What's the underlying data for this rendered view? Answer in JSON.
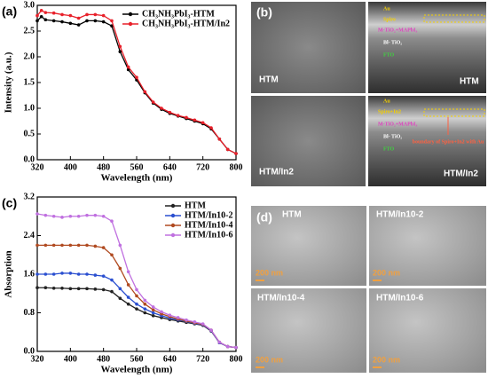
{
  "chart_data": [
    {
      "type": "line",
      "label": "(a)",
      "xlabel": "Wavelength (nm)",
      "ylabel": "Intensity (a.u.)",
      "x": [
        320,
        330,
        340,
        360,
        380,
        400,
        420,
        440,
        460,
        480,
        500,
        520,
        540,
        560,
        580,
        600,
        620,
        640,
        660,
        680,
        700,
        720,
        740,
        760,
        780,
        800
      ],
      "series": [
        {
          "name": "CH₃NH₃PbI₃-HTM",
          "color": "#000000",
          "values": [
            2.7,
            2.78,
            2.72,
            2.7,
            2.68,
            2.65,
            2.62,
            2.7,
            2.7,
            2.68,
            2.6,
            2.1,
            1.75,
            1.55,
            1.3,
            1.1,
            0.98,
            0.9,
            0.85,
            0.8,
            0.75,
            0.7,
            0.6,
            0.4,
            0.2,
            0.12
          ]
        },
        {
          "name": "CH₃NH₃PbI₃-HTM/In2",
          "color": "#e8202a",
          "values": [
            2.8,
            2.9,
            2.86,
            2.85,
            2.82,
            2.8,
            2.75,
            2.82,
            2.82,
            2.8,
            2.7,
            2.2,
            1.8,
            1.6,
            1.32,
            1.12,
            1.0,
            0.92,
            0.86,
            0.82,
            0.77,
            0.72,
            0.62,
            0.4,
            0.2,
            0.12
          ]
        }
      ],
      "xlim": [
        320,
        800
      ],
      "xticks": [
        320,
        400,
        480,
        560,
        640,
        720,
        800
      ],
      "ylim": [
        0,
        3
      ],
      "yticks": [
        {
          "value": 0,
          "label": "0.0"
        },
        0.5,
        {
          "value": 1,
          "label": "1.0"
        },
        1.5,
        {
          "value": 2,
          "label": "2.0"
        },
        2.5,
        {
          "value": 3,
          "label": "3.0"
        }
      ],
      "legend": "upper right"
    },
    {
      "type": "line",
      "label": "(c)",
      "xlabel": "Wavelength (nm)",
      "ylabel": "Absorption",
      "x": [
        320,
        340,
        360,
        380,
        400,
        420,
        440,
        460,
        480,
        500,
        520,
        540,
        560,
        580,
        600,
        620,
        640,
        660,
        680,
        700,
        720,
        740,
        760,
        780,
        800
      ],
      "series": [
        {
          "name": "HTM",
          "color": "#222222",
          "values": [
            1.32,
            1.32,
            1.31,
            1.31,
            1.3,
            1.3,
            1.3,
            1.29,
            1.28,
            1.24,
            1.1,
            0.98,
            0.88,
            0.8,
            0.74,
            0.7,
            0.66,
            0.63,
            0.6,
            0.57,
            0.54,
            0.42,
            0.18,
            0.1,
            0.08
          ]
        },
        {
          "name": "HTM/In10-2",
          "color": "#2a4fd0",
          "values": [
            1.6,
            1.6,
            1.6,
            1.62,
            1.62,
            1.6,
            1.6,
            1.58,
            1.56,
            1.48,
            1.3,
            1.12,
            0.98,
            0.88,
            0.8,
            0.74,
            0.69,
            0.65,
            0.62,
            0.58,
            0.55,
            0.43,
            0.18,
            0.1,
            0.08
          ]
        },
        {
          "name": "HTM/In10-4",
          "color": "#b04a20",
          "values": [
            2.2,
            2.2,
            2.2,
            2.2,
            2.2,
            2.2,
            2.2,
            2.18,
            2.15,
            2.0,
            1.72,
            1.38,
            1.15,
            0.98,
            0.86,
            0.78,
            0.72,
            0.67,
            0.63,
            0.59,
            0.56,
            0.44,
            0.19,
            0.1,
            0.08
          ]
        },
        {
          "name": "HTM/In10-6",
          "color": "#c070e0",
          "values": [
            2.85,
            2.82,
            2.8,
            2.78,
            2.8,
            2.8,
            2.82,
            2.82,
            2.8,
            2.7,
            2.2,
            1.65,
            1.28,
            1.06,
            0.92,
            0.82,
            0.75,
            0.7,
            0.65,
            0.61,
            0.57,
            0.44,
            0.19,
            0.1,
            0.08
          ]
        }
      ],
      "xlim": [
        320,
        800
      ],
      "xticks": [
        320,
        400,
        480,
        560,
        640,
        720,
        800
      ],
      "ylim": [
        0,
        3.2
      ],
      "yticks": [
        {
          "value": 0,
          "label": "0.0"
        },
        0.8,
        1.6,
        2.4,
        3.2
      ],
      "legend": "upper right"
    }
  ],
  "image_panels": [
    {
      "label": "(b)",
      "tiles": [
        {
          "caption": "HTM"
        },
        {
          "caption": "HTM",
          "layers": [
            "Au",
            "Spiro",
            "M-TiO₂+MAPbI₃",
            "Bl- TiO₂",
            "FTO"
          ]
        },
        {
          "caption": "HTM/In2"
        },
        {
          "caption": "HTM/In2",
          "layers": [
            "Au",
            "Spiro+In2",
            "M-TiO₂+MAPbI₃",
            "Bl- TiO₂",
            "FTO"
          ],
          "note": "boundary of Spiro+In2 with Au"
        }
      ]
    },
    {
      "label": "(d)",
      "tiles": [
        {
          "caption": "HTM",
          "scale": "200 nm"
        },
        {
          "caption": "HTM/In10-2",
          "scale": "200 nm"
        },
        {
          "caption": "HTM/In10-4",
          "scale": "200 nm"
        },
        {
          "caption": "HTM/In10-6",
          "scale": "200 nm"
        }
      ]
    }
  ]
}
